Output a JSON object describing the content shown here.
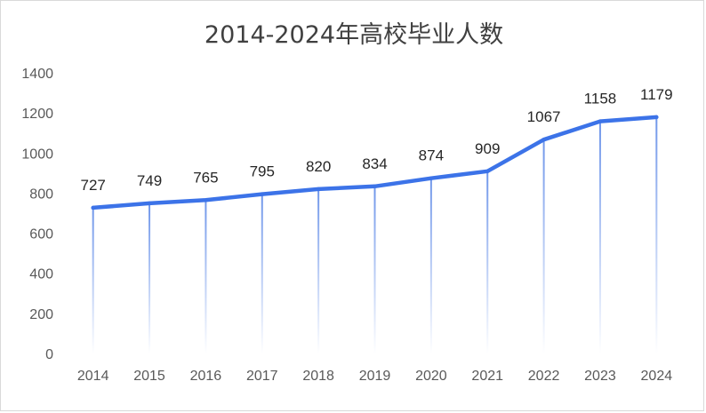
{
  "chart_data": {
    "type": "line",
    "title": "2014-2024年高校毕业人数",
    "xlabel": "",
    "ylabel": "",
    "categories": [
      "2014",
      "2015",
      "2016",
      "2017",
      "2018",
      "2019",
      "2020",
      "2021",
      "2022",
      "2023",
      "2024"
    ],
    "values": [
      727,
      749,
      765,
      795,
      820,
      834,
      874,
      909,
      1067,
      1158,
      1179
    ],
    "ylim": [
      0,
      1400
    ],
    "yticks": [
      "0",
      "200",
      "400",
      "600",
      "800",
      "1000",
      "1200",
      "1400"
    ],
    "grid": false,
    "drop_lines": true,
    "data_labels": true,
    "colors": {
      "line": "#3c73e8",
      "drop_line": "#7aa0ee"
    }
  }
}
